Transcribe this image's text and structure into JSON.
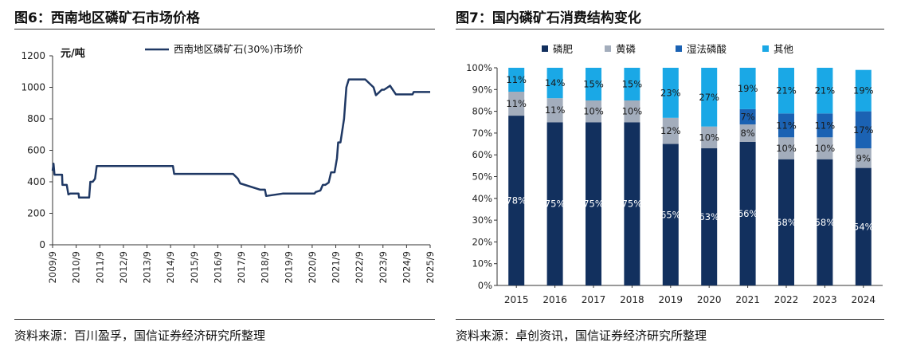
{
  "left": {
    "title": "图6：西南地区磷矿石市场价格",
    "source": "资料来源：百川盈孚，国信证券经济研究所整理",
    "chart_data": {
      "type": "line",
      "title": "",
      "ylabel": "元/吨",
      "xlabel": "",
      "ylim": [
        0,
        1200
      ],
      "yticks": [
        0,
        200,
        400,
        600,
        800,
        1000,
        1200
      ],
      "xlim": [
        2009.75,
        2025.75
      ],
      "xtick_labels": [
        "2009/9",
        "2010/9",
        "2011/9",
        "2012/9",
        "2013/9",
        "2014/9",
        "2015/9",
        "2016/9",
        "2017/9",
        "2018/9",
        "2019/9",
        "2020/9",
        "2021/9",
        "2022/9",
        "2023/9",
        "2024/9",
        "2025/9"
      ],
      "grid": false,
      "legend_position": "top",
      "color": "#1f3864",
      "series": [
        {
          "name": "西南地区磷矿石(30%)市场价",
          "x": [
            2009.75,
            2009.79,
            2009.83,
            2010.15,
            2010.17,
            2010.35,
            2010.42,
            2010.5,
            2010.85,
            2010.87,
            2011.3,
            2011.35,
            2011.45,
            2011.55,
            2011.62,
            2011.85,
            2012.5,
            2013.5,
            2014.5,
            2014.85,
            2014.9,
            2015.5,
            2016.5,
            2017.4,
            2017.6,
            2017.7,
            2018.55,
            2018.6,
            2018.75,
            2018.8,
            2019.5,
            2020.5,
            2020.85,
            2020.9,
            2021.1,
            2021.2,
            2021.3,
            2021.45,
            2021.55,
            2021.7,
            2021.8,
            2021.85,
            2021.95,
            2022.1,
            2022.2,
            2022.3,
            2022.4,
            2022.5,
            2022.6,
            2023.0,
            2023.35,
            2023.45,
            2023.6,
            2023.7,
            2023.8,
            2024.0,
            2024.05,
            2024.3,
            2024.5,
            2024.75,
            2025.0,
            2025.05,
            2025.75
          ],
          "values": [
            470,
            515,
            445,
            445,
            380,
            380,
            320,
            325,
            325,
            300,
            300,
            400,
            400,
            420,
            500,
            500,
            500,
            500,
            500,
            500,
            450,
            450,
            450,
            450,
            420,
            390,
            350,
            350,
            350,
            310,
            325,
            325,
            325,
            335,
            345,
            380,
            380,
            395,
            460,
            460,
            550,
            650,
            650,
            800,
            1000,
            1050,
            1050,
            1050,
            1050,
            1050,
            1000,
            950,
            970,
            985,
            985,
            1005,
            1010,
            955,
            955,
            955,
            955,
            970,
            970
          ]
        }
      ]
    }
  },
  "right": {
    "title": "图7：国内磷矿石消费结构变化",
    "source": "资料来源：卓创资讯，国信证券经济研究所整理",
    "chart_data": {
      "type": "bar",
      "stacked": true,
      "title": "",
      "xlabel": "",
      "ylabel": "",
      "ylim": [
        0,
        100
      ],
      "ytick_labels": [
        "0%",
        "10%",
        "20%",
        "30%",
        "40%",
        "50%",
        "60%",
        "70%",
        "80%",
        "90%",
        "100%"
      ],
      "categories": [
        "2015",
        "2016",
        "2017",
        "2018",
        "2019",
        "2020",
        "2021",
        "2022",
        "2023",
        "2024"
      ],
      "legend_position": "top",
      "grid": false,
      "series": [
        {
          "name": "磷肥",
          "color": "#12305e",
          "values": [
            78,
            75,
            75,
            75,
            65,
            63,
            66,
            58,
            58,
            54
          ],
          "labels": [
            "78%",
            "75%",
            "75%",
            "75%",
            "65%",
            "63%",
            "66%",
            "58%",
            "58%",
            "54%"
          ]
        },
        {
          "name": "黄磷",
          "color": "#a3adbc",
          "values": [
            11,
            11,
            10,
            10,
            12,
            10,
            8,
            10,
            10,
            9
          ],
          "labels": [
            "11%",
            "11%",
            "10%",
            "10%",
            "12%",
            "10%",
            "8%",
            "10%",
            "10%",
            "9%"
          ]
        },
        {
          "name": "湿法磷酸",
          "color": "#1b62b3",
          "values": [
            0,
            0,
            0,
            0,
            0,
            0,
            7,
            11,
            11,
            17
          ],
          "labels": [
            "",
            "",
            "",
            "",
            "",
            "",
            "7%",
            "11%",
            "11%",
            "17%"
          ]
        },
        {
          "name": "其他",
          "color": "#1aa8e6",
          "values": [
            11,
            14,
            15,
            15,
            23,
            27,
            19,
            21,
            21,
            19
          ],
          "labels": [
            "11%",
            "14%",
            "15%",
            "15%",
            "23%",
            "27%",
            "19%",
            "21%",
            "21%",
            "19%"
          ]
        }
      ]
    }
  }
}
